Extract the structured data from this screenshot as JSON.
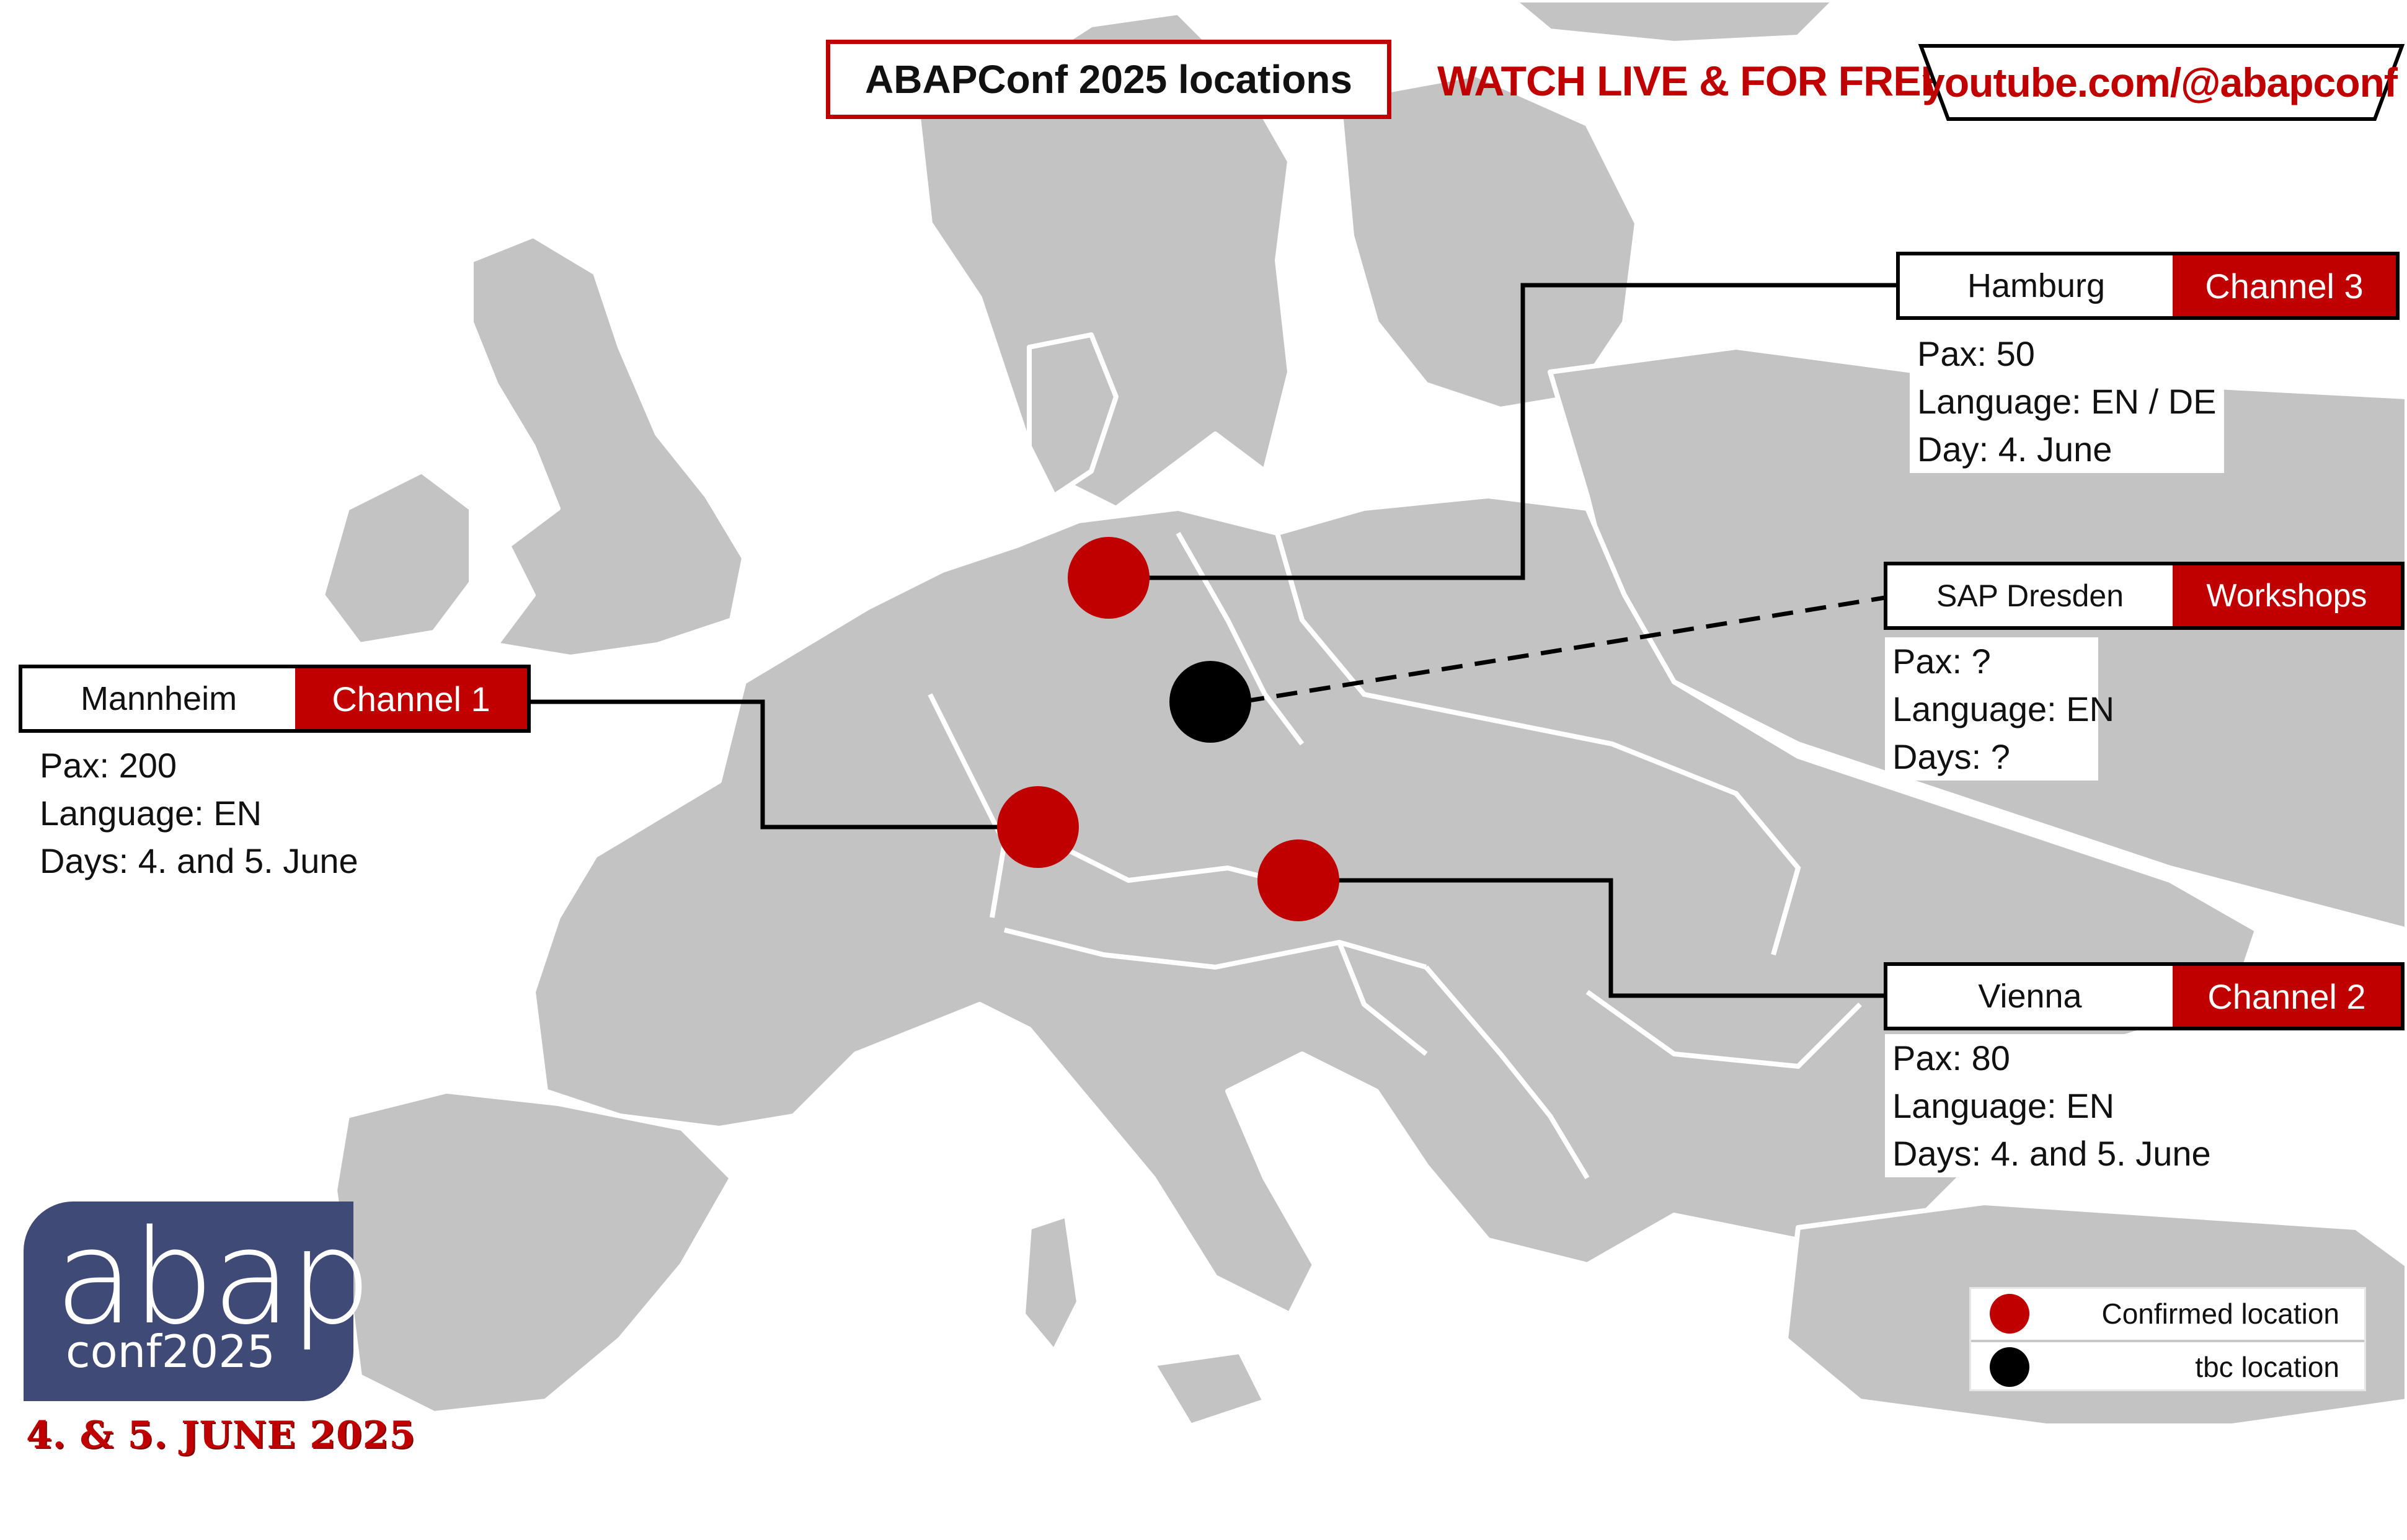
{
  "header": {
    "title": "ABAPConf 2025 locations",
    "watch_label": "WATCH LIVE & FOR FREE",
    "youtube": "youtube.com/@abapconf"
  },
  "colors": {
    "accent": "#c00000",
    "land": "#c3c3c3",
    "tbc": "#000000",
    "logo_bg": "#3f4a77"
  },
  "locations": [
    {
      "city": "Mannheim",
      "channel": "Channel 1",
      "status": "confirmed",
      "info": [
        "Pax: 200",
        "Language: EN",
        "Days: 4. and 5. June"
      ]
    },
    {
      "city": "Hamburg",
      "channel": "Channel 3",
      "status": "confirmed",
      "info": [
        "Pax: 50",
        "Language: EN / DE",
        "Day: 4. June"
      ]
    },
    {
      "city": "SAP Dresden",
      "channel": "Workshops",
      "status": "tbc",
      "info": [
        "Pax: ?",
        "Language: EN",
        "Days: ?"
      ]
    },
    {
      "city": "Vienna",
      "channel": "Channel 2",
      "status": "confirmed",
      "info": [
        "Pax: 80",
        "Language: EN",
        "Days: 4. and 5. June"
      ]
    }
  ],
  "logo": {
    "main": "abap",
    "sub": "conf2025",
    "dates": "4. & 5. JUNE 2025"
  },
  "legend": {
    "confirmed": "Confirmed location",
    "tbc": "tbc location"
  }
}
